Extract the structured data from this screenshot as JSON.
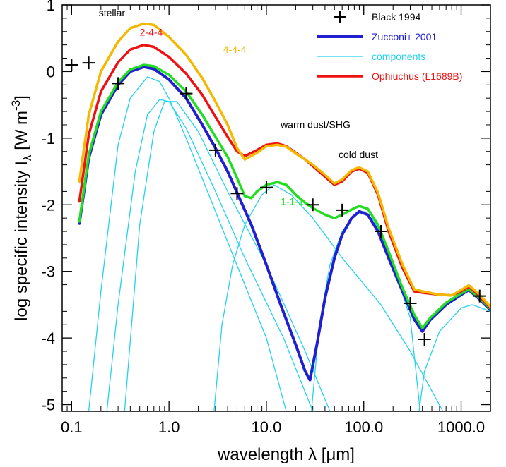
{
  "chart_data": {
    "type": "line",
    "xscale": "log",
    "xlim": [
      0.08,
      2000
    ],
    "ylim": [
      -5.1,
      1
    ],
    "xlabel_prefix": "wavelength λ [",
    "xlabel_unit": "μm",
    "xlabel_suffix": "]",
    "ylabel_prefix": "log specific intensity I",
    "ylabel_sub": "λ",
    "ylabel_mid": " [W m",
    "ylabel_sup": "-3",
    "ylabel_suffix": "]",
    "x_ticks": [
      {
        "value": 0.1,
        "label": "0.1"
      },
      {
        "value": 1,
        "label": "1.0"
      },
      {
        "value": 10,
        "label": "10.0"
      },
      {
        "value": 100,
        "label": "100.0"
      },
      {
        "value": 1000,
        "label": "1000.0"
      }
    ],
    "y_ticks": [
      {
        "value": 1,
        "label": "1"
      },
      {
        "value": 0,
        "label": "0"
      },
      {
        "value": -1,
        "label": "-1"
      },
      {
        "value": -2,
        "label": "-2"
      },
      {
        "value": -3,
        "label": "-3"
      },
      {
        "value": -4,
        "label": "-4"
      },
      {
        "value": -5,
        "label": "-5"
      }
    ],
    "series": [
      {
        "name": "components",
        "color": "#22d3ee",
        "width": 1.3,
        "legend_index": 2,
        "points": [
          [
            0.15,
            -5.1
          ],
          [
            0.2,
            -3.3
          ],
          [
            0.3,
            -1.1
          ],
          [
            0.4,
            -0.4
          ],
          [
            0.6,
            -0.08
          ],
          [
            0.8,
            -0.15
          ],
          [
            1.0,
            -0.4
          ],
          [
            1.5,
            -1.0
          ],
          [
            3,
            -2.1
          ],
          [
            6,
            -3.2
          ],
          [
            10,
            -4.0
          ],
          [
            16,
            -5.1
          ]
        ]
      },
      {
        "name": "",
        "color": "#22d3ee",
        "width": 1.3,
        "points": [
          [
            0.23,
            -5.1
          ],
          [
            0.3,
            -3.5
          ],
          [
            0.45,
            -1.5
          ],
          [
            0.6,
            -0.65
          ],
          [
            0.8,
            -0.42
          ],
          [
            1.0,
            -0.45
          ],
          [
            1.5,
            -0.85
          ],
          [
            3,
            -1.8
          ],
          [
            6,
            -2.8
          ],
          [
            15,
            -4.0
          ],
          [
            30,
            -5.1
          ]
        ]
      },
      {
        "name": "",
        "color": "#22d3ee",
        "width": 1.3,
        "points": [
          [
            0.35,
            -5.1
          ],
          [
            0.5,
            -2.3
          ],
          [
            0.7,
            -0.9
          ],
          [
            0.9,
            -0.45
          ],
          [
            1.2,
            -0.45
          ],
          [
            2,
            -0.9
          ],
          [
            4,
            -1.8
          ],
          [
            10,
            -2.9
          ],
          [
            25,
            -4.2
          ],
          [
            45,
            -5.1
          ]
        ]
      },
      {
        "name": "",
        "color": "#22d3ee",
        "width": 1.3,
        "points": [
          [
            2.9,
            -5.1
          ],
          [
            3.5,
            -3.8
          ],
          [
            4.5,
            -2.9
          ],
          [
            6,
            -2.3
          ],
          [
            9,
            -1.85
          ],
          [
            12,
            -1.7
          ],
          [
            18,
            -1.85
          ],
          [
            30,
            -2.2
          ],
          [
            60,
            -2.8
          ],
          [
            150,
            -3.5
          ],
          [
            300,
            -4.2
          ],
          [
            650,
            -5.1
          ]
        ]
      },
      {
        "name": "",
        "color": "#22d3ee",
        "width": 1.3,
        "points": [
          [
            29,
            -5.1
          ],
          [
            35,
            -3.8
          ],
          [
            45,
            -2.9
          ],
          [
            60,
            -2.4
          ],
          [
            80,
            -2.15
          ],
          [
            100,
            -2.1
          ],
          [
            130,
            -2.25
          ],
          [
            200,
            -2.9
          ],
          [
            300,
            -3.7
          ],
          [
            380,
            -5.1
          ]
        ]
      },
      {
        "name": "",
        "color": "#22d3ee",
        "width": 1.3,
        "points": [
          [
            370,
            -5.1
          ],
          [
            420,
            -4.5
          ],
          [
            600,
            -3.9
          ],
          [
            1000,
            -3.55
          ],
          [
            1300,
            -3.5
          ],
          [
            2000,
            -3.6
          ]
        ]
      },
      {
        "name": "Zucconi+ 2001",
        "color": "#2020d0",
        "width": 4,
        "legend_index": 1,
        "points": [
          [
            0.12,
            -2.28
          ],
          [
            0.15,
            -1.3
          ],
          [
            0.2,
            -0.65
          ],
          [
            0.3,
            -0.2
          ],
          [
            0.4,
            0.0
          ],
          [
            0.55,
            0.07
          ],
          [
            0.7,
            0.04
          ],
          [
            1.0,
            -0.12
          ],
          [
            1.5,
            -0.4
          ],
          [
            2.2,
            -0.8
          ],
          [
            3,
            -1.15
          ],
          [
            4,
            -1.5
          ],
          [
            5,
            -1.82
          ],
          [
            7,
            -2.3
          ],
          [
            10,
            -2.9
          ],
          [
            14,
            -3.5
          ],
          [
            20,
            -4.1
          ],
          [
            25,
            -4.5
          ],
          [
            28,
            -4.63
          ],
          [
            33,
            -4.1
          ],
          [
            40,
            -3.4
          ],
          [
            50,
            -2.8
          ],
          [
            60,
            -2.45
          ],
          [
            75,
            -2.2
          ],
          [
            90,
            -2.1
          ],
          [
            110,
            -2.15
          ],
          [
            140,
            -2.4
          ],
          [
            180,
            -2.8
          ],
          [
            250,
            -3.3
          ],
          [
            330,
            -3.72
          ],
          [
            400,
            -3.9
          ],
          [
            480,
            -3.73
          ],
          [
            700,
            -3.5
          ],
          [
            1000,
            -3.35
          ],
          [
            1200,
            -3.28
          ],
          [
            1500,
            -3.4
          ],
          [
            2000,
            -3.58
          ]
        ]
      },
      {
        "name": "",
        "color": "#22dd22",
        "width": 3.5,
        "points": [
          [
            0.12,
            -2.25
          ],
          [
            0.15,
            -1.25
          ],
          [
            0.2,
            -0.6
          ],
          [
            0.3,
            -0.16
          ],
          [
            0.4,
            0.03
          ],
          [
            0.55,
            0.1
          ],
          [
            0.7,
            0.08
          ],
          [
            1.0,
            -0.05
          ],
          [
            1.5,
            -0.3
          ],
          [
            2.2,
            -0.65
          ],
          [
            3,
            -0.98
          ],
          [
            4,
            -1.28
          ],
          [
            5,
            -1.6
          ],
          [
            6,
            -1.87
          ],
          [
            7,
            -1.9
          ],
          [
            8,
            -1.8
          ],
          [
            10,
            -1.7
          ],
          [
            13,
            -1.66
          ],
          [
            16,
            -1.7
          ],
          [
            20,
            -1.85
          ],
          [
            25,
            -1.97
          ],
          [
            30,
            -2.05
          ],
          [
            40,
            -2.15
          ],
          [
            50,
            -2.2
          ],
          [
            60,
            -2.15
          ],
          [
            80,
            -2.05
          ],
          [
            90,
            -2.02
          ],
          [
            110,
            -2.06
          ],
          [
            140,
            -2.3
          ],
          [
            180,
            -2.7
          ],
          [
            250,
            -3.25
          ],
          [
            330,
            -3.65
          ],
          [
            400,
            -3.85
          ],
          [
            480,
            -3.7
          ],
          [
            700,
            -3.47
          ],
          [
            1000,
            -3.33
          ],
          [
            1200,
            -3.27
          ],
          [
            1500,
            -3.38
          ],
          [
            2000,
            -3.56
          ]
        ]
      },
      {
        "name": "Ophiuchus (L1689B)",
        "color": "#ee1111",
        "width": 3.5,
        "legend_index": 3,
        "points": [
          [
            0.12,
            -1.95
          ],
          [
            0.15,
            -0.95
          ],
          [
            0.2,
            -0.3
          ],
          [
            0.3,
            0.14
          ],
          [
            0.4,
            0.33
          ],
          [
            0.55,
            0.4
          ],
          [
            0.7,
            0.37
          ],
          [
            1.0,
            0.22
          ],
          [
            1.5,
            -0.03
          ],
          [
            2.2,
            -0.35
          ],
          [
            3,
            -0.68
          ],
          [
            4,
            -0.98
          ],
          [
            5,
            -1.2
          ],
          [
            6,
            -1.27
          ],
          [
            8,
            -1.18
          ],
          [
            10,
            -1.1
          ],
          [
            13,
            -1.08
          ],
          [
            16,
            -1.12
          ],
          [
            20,
            -1.22
          ],
          [
            25,
            -1.32
          ],
          [
            30,
            -1.42
          ],
          [
            40,
            -1.58
          ],
          [
            50,
            -1.7
          ],
          [
            60,
            -1.65
          ],
          [
            75,
            -1.5
          ],
          [
            90,
            -1.46
          ],
          [
            110,
            -1.52
          ],
          [
            140,
            -1.85
          ],
          [
            180,
            -2.4
          ],
          [
            250,
            -2.95
          ],
          [
            330,
            -3.3
          ],
          [
            400,
            -3.32
          ],
          [
            600,
            -3.35
          ],
          [
            800,
            -3.36
          ],
          [
            1000,
            -3.3
          ],
          [
            1200,
            -3.23
          ],
          [
            1500,
            -3.35
          ],
          [
            2000,
            -3.55
          ]
        ]
      },
      {
        "name": "",
        "color": "#f5b800",
        "width": 3.5,
        "points": [
          [
            0.12,
            -1.65
          ],
          [
            0.15,
            -0.65
          ],
          [
            0.2,
            0.0
          ],
          [
            0.3,
            0.45
          ],
          [
            0.4,
            0.65
          ],
          [
            0.55,
            0.72
          ],
          [
            0.7,
            0.7
          ],
          [
            1.0,
            0.52
          ],
          [
            1.5,
            0.25
          ],
          [
            2.2,
            -0.1
          ],
          [
            3,
            -0.45
          ],
          [
            4,
            -0.8
          ],
          [
            5,
            -1.15
          ],
          [
            6,
            -1.32
          ],
          [
            8,
            -1.22
          ],
          [
            10,
            -1.12
          ],
          [
            13,
            -1.1
          ],
          [
            16,
            -1.13
          ],
          [
            20,
            -1.23
          ],
          [
            25,
            -1.32
          ],
          [
            30,
            -1.4
          ],
          [
            40,
            -1.55
          ],
          [
            50,
            -1.68
          ],
          [
            60,
            -1.62
          ],
          [
            75,
            -1.48
          ],
          [
            90,
            -1.44
          ],
          [
            110,
            -1.5
          ],
          [
            140,
            -1.82
          ],
          [
            180,
            -2.35
          ],
          [
            250,
            -2.9
          ],
          [
            330,
            -3.27
          ],
          [
            400,
            -3.3
          ],
          [
            600,
            -3.35
          ],
          [
            800,
            -3.36
          ],
          [
            1000,
            -3.28
          ],
          [
            1200,
            -3.21
          ],
          [
            1500,
            -3.33
          ],
          [
            2000,
            -3.53
          ]
        ]
      }
    ],
    "observations": {
      "name": "Black 1994",
      "legend_index": 0,
      "points": [
        [
          0.1,
          0.1
        ],
        [
          0.15,
          0.13
        ],
        [
          0.3,
          -0.18
        ],
        [
          1.5,
          -0.33
        ],
        [
          3,
          -1.18
        ],
        [
          5,
          -1.83
        ],
        [
          10,
          -1.74
        ],
        [
          30,
          -2.0
        ],
        [
          60,
          -2.08
        ],
        [
          150,
          -2.4
        ],
        [
          300,
          -3.48
        ],
        [
          420,
          -4.02
        ],
        [
          1550,
          -3.37
        ]
      ]
    },
    "annotations": [
      {
        "text": "stellar",
        "x": 0.19,
        "y": 0.83,
        "color": "#000000"
      },
      {
        "text": "2-4-4",
        "x": 0.5,
        "y": 0.54,
        "color": "#ee1111"
      },
      {
        "text": "4-4-4",
        "x": 3.6,
        "y": 0.28,
        "color": "#f5b800"
      },
      {
        "text": "warm dust/SHG",
        "x": 14,
        "y": -0.85,
        "color": "#000000"
      },
      {
        "text": "cold dust",
        "x": 55,
        "y": -1.3,
        "color": "#000000"
      },
      {
        "text": "1-1-1",
        "x": 14,
        "y": -2.0,
        "color": "#22dd22"
      }
    ]
  }
}
